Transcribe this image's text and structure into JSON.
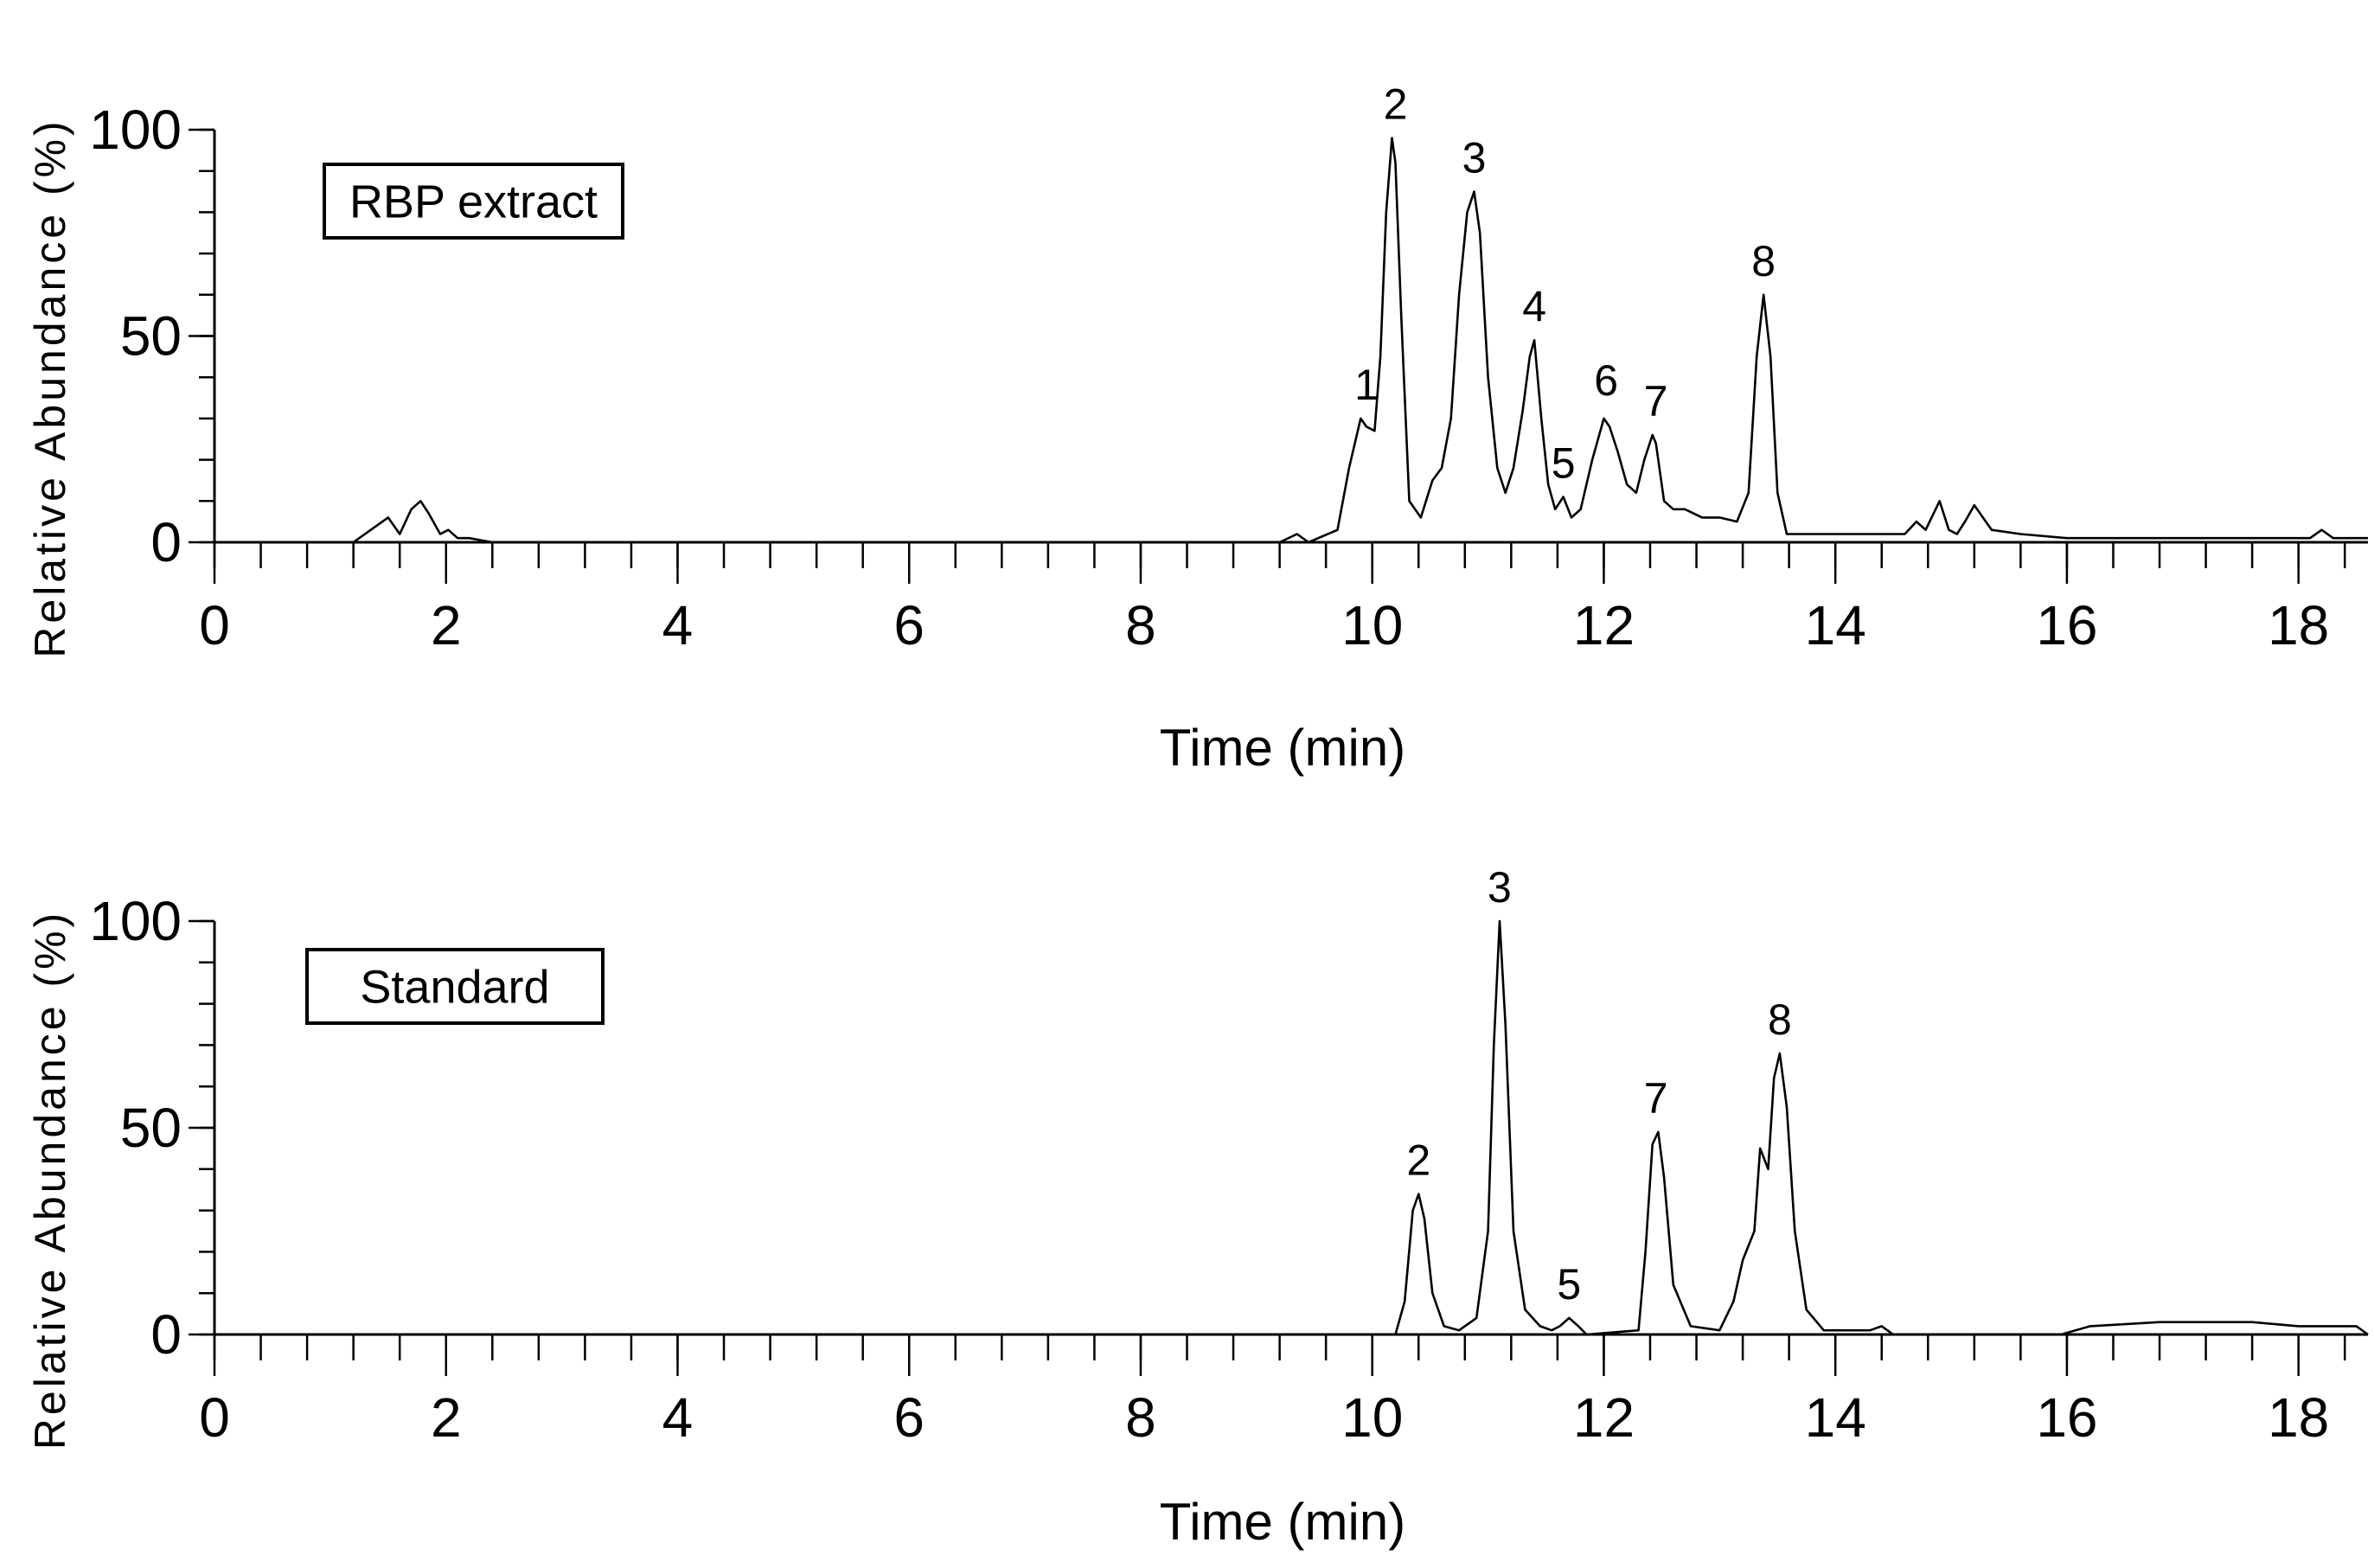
{
  "chart_data": [
    {
      "type": "line",
      "title": "",
      "box_label": "RBP extract",
      "xlabel": "Time (min)",
      "ylabel": "Relative Abundance (%)",
      "xlim": [
        0,
        18.6
      ],
      "ylim": [
        0,
        100
      ],
      "xticks": [
        0,
        2,
        4,
        6,
        8,
        10,
        12,
        14,
        16,
        18
      ],
      "yticks": [
        0,
        50,
        100
      ],
      "grid": false,
      "peaks": [
        {
          "label": "1",
          "x": 9.95,
          "y": 30
        },
        {
          "label": "2",
          "x": 10.2,
          "y": 98
        },
        {
          "label": "3",
          "x": 10.88,
          "y": 85
        },
        {
          "label": "4",
          "x": 11.4,
          "y": 49
        },
        {
          "label": "5",
          "x": 11.65,
          "y": 11
        },
        {
          "label": "6",
          "x": 12.02,
          "y": 31
        },
        {
          "label": "7",
          "x": 12.45,
          "y": 26
        },
        {
          "label": "8",
          "x": 13.38,
          "y": 60
        }
      ],
      "series": [
        {
          "x": [
            0,
            1.2,
            1.4,
            1.5,
            1.6,
            1.7,
            1.78,
            1.85,
            1.95,
            2.02,
            2.1,
            2.2,
            2.4,
            9.2,
            9.35,
            9.45,
            9.7,
            9.8,
            9.9,
            9.95,
            10.02,
            10.07,
            10.12,
            10.17,
            10.2,
            10.25,
            10.32,
            10.42,
            10.52,
            10.6,
            10.68,
            10.75,
            10.82,
            10.88,
            10.93,
            11.0,
            11.08,
            11.15,
            11.22,
            11.3,
            11.36,
            11.4,
            11.46,
            11.52,
            11.58,
            11.65,
            11.72,
            11.8,
            11.9,
            12.0,
            12.05,
            12.12,
            12.2,
            12.28,
            12.35,
            12.42,
            12.45,
            12.52,
            12.6,
            12.7,
            12.85,
            13.0,
            13.15,
            13.25,
            13.32,
            13.38,
            13.44,
            13.5,
            13.58,
            13.7,
            14.0,
            14.6,
            14.7,
            14.78,
            14.9,
            14.98,
            15.05,
            15.12,
            15.2,
            15.35,
            15.6,
            16.0,
            18.0,
            18.1,
            18.2,
            18.3,
            18.6
          ],
          "y": [
            0,
            0,
            4,
            6,
            2,
            8,
            10,
            7,
            2,
            3,
            1,
            1,
            0,
            0,
            2,
            0,
            3,
            18,
            30,
            28,
            27,
            45,
            80,
            98,
            92,
            55,
            10,
            6,
            15,
            18,
            30,
            60,
            80,
            85,
            75,
            40,
            18,
            12,
            18,
            32,
            45,
            49,
            30,
            14,
            8,
            11,
            6,
            8,
            20,
            30,
            28,
            22,
            14,
            12,
            20,
            26,
            24,
            10,
            8,
            8,
            6,
            6,
            5,
            12,
            45,
            60,
            45,
            12,
            2,
            2,
            2,
            2,
            5,
            3,
            10,
            3,
            2,
            5,
            9,
            3,
            2,
            1,
            1,
            1,
            3,
            1,
            1
          ]
        }
      ]
    },
    {
      "type": "line",
      "title": "",
      "box_label": "Standard",
      "xlabel": "Time (min)",
      "ylabel": "Relative Abundance (%)",
      "xlim": [
        0,
        18.6
      ],
      "ylim": [
        0,
        100
      ],
      "xticks": [
        0,
        2,
        4,
        6,
        8,
        10,
        12,
        14,
        16,
        18
      ],
      "yticks": [
        0,
        50,
        100
      ],
      "grid": false,
      "peaks": [
        {
          "label": "2",
          "x": 10.4,
          "y": 34
        },
        {
          "label": "3",
          "x": 11.1,
          "y": 100
        },
        {
          "label": "5",
          "x": 11.7,
          "y": 4
        },
        {
          "label": "7",
          "x": 12.45,
          "y": 49
        },
        {
          "label": "8",
          "x": 13.52,
          "y": 68
        }
      ],
      "series": [
        {
          "x": [
            0,
            10.2,
            10.28,
            10.35,
            10.4,
            10.45,
            10.52,
            10.62,
            10.75,
            10.9,
            11.0,
            11.05,
            11.1,
            11.15,
            11.22,
            11.32,
            11.45,
            11.55,
            11.62,
            11.7,
            11.78,
            11.85,
            12.3,
            12.36,
            12.42,
            12.47,
            12.52,
            12.6,
            12.75,
            13.0,
            13.12,
            13.2,
            13.3,
            13.35,
            13.42,
            13.47,
            13.52,
            13.58,
            13.65,
            13.75,
            13.9,
            14.3,
            14.4,
            14.5,
            15.95,
            16.2,
            16.8,
            17.6,
            18.0,
            18.5,
            18.6
          ],
          "y": [
            0,
            0,
            8,
            30,
            34,
            28,
            10,
            2,
            1,
            4,
            25,
            70,
            100,
            75,
            25,
            6,
            2,
            1,
            2,
            4,
            2,
            0,
            1,
            20,
            46,
            49,
            38,
            12,
            2,
            1,
            8,
            18,
            25,
            45,
            40,
            62,
            68,
            55,
            25,
            6,
            1,
            1,
            2,
            0,
            0,
            2,
            3,
            3,
            2,
            2,
            0
          ]
        }
      ]
    }
  ]
}
